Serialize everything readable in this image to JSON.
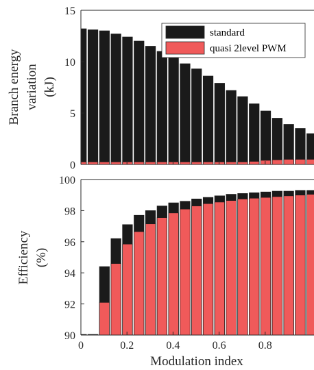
{
  "chart_data": [
    {
      "type": "bar",
      "ylabel_lines": [
        "Branch energy",
        "variation",
        "(kJ)"
      ],
      "ylim": [
        0,
        15
      ],
      "yticks": [
        0,
        5,
        10,
        15
      ],
      "x": [
        0.0,
        0.05,
        0.1,
        0.15,
        0.2,
        0.25,
        0.3,
        0.35,
        0.4,
        0.45,
        0.5,
        0.55,
        0.6,
        0.65,
        0.7,
        0.75,
        0.8,
        0.85,
        0.9,
        0.95,
        1.0
      ],
      "legend_position": "top-right",
      "series": [
        {
          "name": "standard",
          "color": "#1a1a1a",
          "values": [
            13.2,
            13.1,
            13.0,
            12.7,
            12.4,
            12.0,
            11.5,
            11.0,
            10.5,
            9.8,
            9.3,
            8.6,
            7.9,
            7.2,
            6.6,
            5.9,
            5.2,
            4.5,
            3.9,
            3.5,
            3.0
          ]
        },
        {
          "name": "quasi 2level PWM",
          "color": "#f05a5a",
          "values": [
            0.25,
            0.25,
            0.25,
            0.25,
            0.25,
            0.25,
            0.25,
            0.25,
            0.25,
            0.25,
            0.25,
            0.25,
            0.25,
            0.25,
            0.25,
            0.3,
            0.4,
            0.45,
            0.5,
            0.5,
            0.5
          ]
        }
      ]
    },
    {
      "type": "bar",
      "xlabel": "Modulation index",
      "ylabel_lines": [
        "Efficiency",
        "(%)"
      ],
      "ylim": [
        90,
        100
      ],
      "yticks": [
        90,
        92,
        94,
        96,
        98,
        100
      ],
      "xlim": [
        0,
        1
      ],
      "xticks": [
        0,
        0.2,
        0.4,
        0.6,
        0.8
      ],
      "x": [
        0.0,
        0.05,
        0.1,
        0.15,
        0.2,
        0.25,
        0.3,
        0.35,
        0.4,
        0.45,
        0.5,
        0.55,
        0.6,
        0.65,
        0.7,
        0.75,
        0.8,
        0.85,
        0.9,
        0.95,
        1.0
      ],
      "series": [
        {
          "name": "standard",
          "color": "#1a1a1a",
          "values": [
            90.0,
            90.0,
            94.4,
            96.2,
            97.1,
            97.7,
            98.0,
            98.3,
            98.5,
            98.6,
            98.75,
            98.85,
            98.95,
            99.05,
            99.1,
            99.15,
            99.2,
            99.25,
            99.25,
            99.3,
            99.3
          ]
        },
        {
          "name": "quasi 2level PWM",
          "color": "#f05a5a",
          "values": [
            90.0,
            90.0,
            92.1,
            94.6,
            95.85,
            96.65,
            97.15,
            97.55,
            97.85,
            98.1,
            98.3,
            98.45,
            98.55,
            98.65,
            98.75,
            98.8,
            98.85,
            98.9,
            98.95,
            99.0,
            99.05
          ]
        }
      ]
    }
  ]
}
